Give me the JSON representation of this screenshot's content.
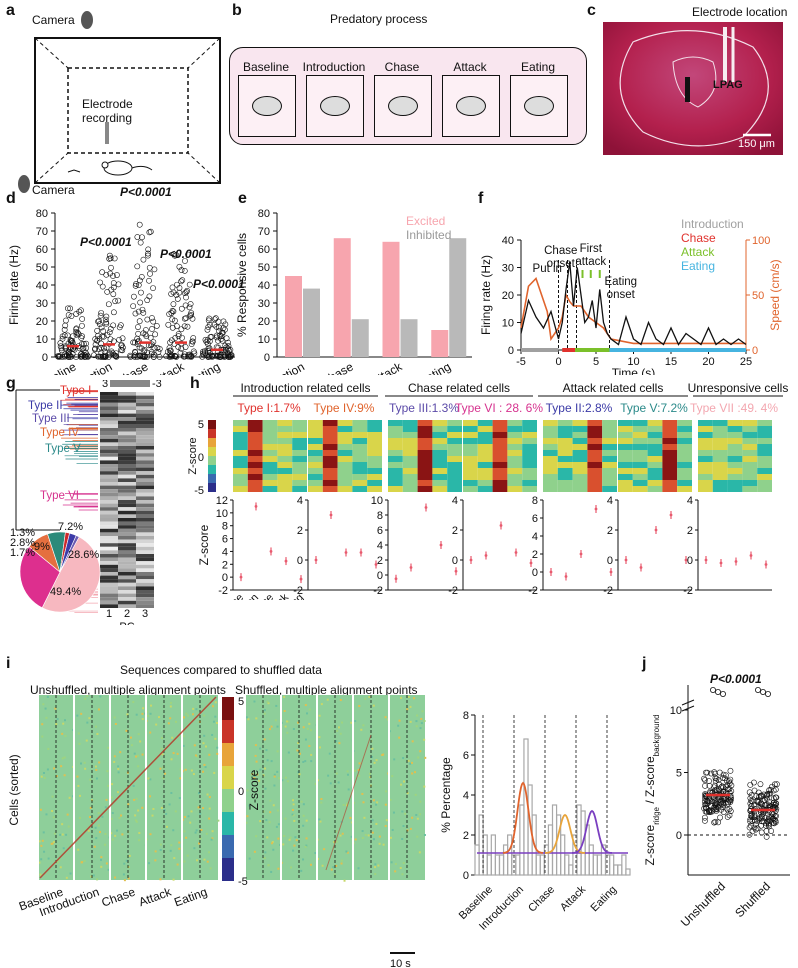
{
  "panels": {
    "a": {
      "label": "a",
      "camera_top": "Camera",
      "camera_bottom": "Camera",
      "electrode": "Electrode recording"
    },
    "b": {
      "label": "b",
      "title": "Predatory process",
      "stages": [
        "Baseline",
        "Introduction",
        "Chase",
        "Attack",
        "Eating"
      ]
    },
    "c": {
      "label": "c",
      "title": "Electrode location",
      "region": "LPAG",
      "scale": "150 μm"
    },
    "d": {
      "label": "d",
      "ylabel": "Firing rate (Hz)",
      "p1": "P<0.0001",
      "p2": "P<0.0001",
      "p3": "P<0.0001",
      "p4": "P<0.0001"
    },
    "e": {
      "label": "e",
      "ylabel": "% Responsive cells",
      "legend_excited": "Excited",
      "legend_inhibited": "Inhibited"
    },
    "f": {
      "label": "f",
      "ylabel_left": "Firing rate (Hz)",
      "ylabel_right": "Speed (cm/s)",
      "xlabel": "Time (s)",
      "ann_putin": "Put in",
      "ann_chase": "Chase",
      "ann_onset": "onset",
      "ann_first": "First",
      "ann_attack": "attack",
      "ann_eating": "Eating",
      "ann_eonset": "onset",
      "legend": [
        {
          "name": "Introduction",
          "color": "#a0a0a0"
        },
        {
          "name": "Chase",
          "color": "#e0322d"
        },
        {
          "name": "Attack",
          "color": "#7bc02a"
        },
        {
          "name": "Eating",
          "color": "#46b4e0"
        }
      ]
    },
    "g": {
      "label": "g",
      "types": [
        "Type I",
        "Type II",
        "Type III",
        "Type IV",
        "Type V",
        "Type VI",
        "Type VII"
      ],
      "pc_label": "PC",
      "pc_ticks": [
        "1",
        "2",
        "3"
      ],
      "scale_hi": "3",
      "scale_lo": "-3",
      "pie_labels": [
        "7.2%",
        "9%",
        "28.6%",
        "49.4%",
        "1.3%",
        "2.8%",
        "1.7%"
      ]
    },
    "h": {
      "label": "h",
      "groups": [
        "Introduction related cells",
        "Chase related cells",
        "Attack related cells",
        "Unresponsive cells"
      ],
      "types": [
        "Type I:1.7%",
        "Type IV:9%",
        "Type III:1.3%",
        "Type VI : 28. 6%",
        "Type II:2.8%",
        "Type V:7.2%",
        "Type VII :49. 4%"
      ],
      "type_colors": [
        "#e0322d",
        "#e0642d",
        "#5b4aa8",
        "#d6338f",
        "#3b3aa6",
        "#2b8a8a",
        "#f3a7b0"
      ],
      "colorbar_label": "Z-score",
      "colorbar_ticks": [
        "5",
        "0",
        "-5"
      ],
      "zscore_label": "Z-score",
      "xcats": [
        "Baseline",
        "Introduction",
        "Chase",
        "Attack",
        "Eating"
      ]
    },
    "i": {
      "label": "i",
      "title": "Sequences compared to shuffled data",
      "sub1": "Unshuffled, multiple alignment points",
      "sub2": "Shuffled, multiple alignment points",
      "ylabel": "Cells (sorted)",
      "colorbar_label": "Z-score",
      "cb_ticks": [
        "5",
        "0",
        "-5"
      ],
      "xcats": [
        "Baseline",
        "Introduction",
        "Chase",
        "Attack",
        "Eating"
      ],
      "scalebar": "10 s",
      "pct_label": "% Percentage",
      "pct_ticks": [
        "8",
        "6",
        "4",
        "2",
        "0"
      ]
    },
    "j": {
      "label": "j",
      "p": "P<0.0001",
      "xcats": [
        "Unshuffled",
        "Shuffled"
      ],
      "ylabel": "Z-score",
      "ylabel_sub1": "ridge",
      "ylabel_mid": " / Z-score",
      "ylabel_sub2": "background",
      "ticks": [
        "10",
        "5",
        "0"
      ]
    }
  },
  "chart_data": [
    {
      "type": "scatter",
      "panel": "d",
      "categories": [
        "Baseline",
        "Introduction",
        "Chase",
        "Attack",
        "Eating"
      ],
      "means": [
        6,
        7,
        8,
        8,
        4
      ],
      "ylim": [
        0,
        80
      ],
      "yticks": [
        0,
        10,
        20,
        30,
        40,
        50,
        60,
        70,
        80
      ],
      "ylabel": "Firing rate (Hz)"
    },
    {
      "type": "bar",
      "panel": "e",
      "categories": [
        "Introduction",
        "Chase",
        "Attack",
        "Eating"
      ],
      "series": [
        {
          "name": "Excited",
          "values": [
            45,
            66,
            64,
            15
          ],
          "color": "#f7a5ae"
        },
        {
          "name": "Inhibited",
          "values": [
            38,
            21,
            21,
            66
          ],
          "color": "#b9b9b9"
        }
      ],
      "ylim": [
        0,
        80
      ],
      "yticks": [
        0,
        10,
        20,
        30,
        40,
        50,
        60,
        70,
        80
      ],
      "ylabel": "% Responsive cells"
    },
    {
      "type": "line",
      "panel": "f",
      "x": [
        -5,
        -4,
        -3,
        -2,
        -1,
        0,
        0.5,
        1,
        1.5,
        2,
        2.5,
        3,
        3.5,
        4,
        4.5,
        5,
        5.5,
        6,
        6.5,
        7,
        8,
        9,
        10,
        11,
        12,
        13,
        14,
        15,
        16,
        17,
        18,
        19,
        20,
        21,
        22,
        23,
        24,
        25
      ],
      "firing": [
        6,
        18,
        12,
        8,
        14,
        4,
        10,
        22,
        32,
        16,
        30,
        20,
        10,
        12,
        18,
        8,
        22,
        10,
        6,
        4,
        2,
        12,
        4,
        2,
        10,
        4,
        2,
        8,
        2,
        6,
        4,
        2,
        8,
        2,
        4,
        2,
        4,
        2
      ],
      "speed_x": [
        -5,
        -4,
        -3,
        -2.5,
        -1.5,
        -1,
        0,
        0.5,
        1,
        1.5,
        2,
        3,
        4,
        5,
        6,
        7,
        10,
        15,
        20,
        25
      ],
      "speed": [
        20,
        58,
        65,
        55,
        35,
        10,
        20,
        30,
        50,
        44,
        40,
        40,
        30,
        25,
        20,
        10,
        6,
        6,
        6,
        6
      ],
      "xlim": [
        -5,
        25
      ],
      "xticks": [
        -5,
        0,
        5,
        10,
        15,
        20,
        25
      ],
      "ylim_left": [
        0,
        40
      ],
      "yticks_left": [
        0,
        10,
        20,
        30,
        40
      ],
      "ylim_right": [
        0,
        100
      ],
      "yticks_right": [
        0,
        50,
        100
      ],
      "ylabel_left": "Firing rate (Hz)",
      "ylabel_right": "Speed (cm/s)",
      "xlabel": "Time (s)"
    },
    {
      "type": "pie",
      "panel": "g",
      "labels": [
        "49.4%",
        "28.6%",
        "9%",
        "7.2%",
        "1.7%",
        "2.8%",
        "1.3%"
      ],
      "values": [
        49.4,
        28.6,
        9,
        7.2,
        1.7,
        2.8,
        1.3
      ],
      "colors": [
        "#f7b8c0",
        "#dd2f8e",
        "#e56f3f",
        "#2b8a7a",
        "#cc2a2a",
        "#3c3ba8",
        "#6a58b0"
      ]
    },
    {
      "type": "scatter",
      "panel": "h",
      "xcats": [
        "Baseline",
        "Introduction",
        "Chase",
        "Attack",
        "Eating"
      ],
      "series": [
        {
          "name": "Type I",
          "values": [
            0,
            11,
            4,
            2.5,
            -0.3
          ],
          "ylim": [
            -2,
            12
          ]
        },
        {
          "name": "Type IV",
          "values": [
            0,
            3,
            0.5,
            0.5,
            -0.3
          ],
          "ylim": [
            -2,
            4
          ]
        },
        {
          "name": "Type III",
          "values": [
            -0.5,
            1,
            9,
            4,
            0.5
          ],
          "ylim": [
            -2,
            10
          ]
        },
        {
          "name": "Type VI",
          "values": [
            0,
            0.3,
            2.3,
            0.5,
            -0.2
          ],
          "ylim": [
            -2,
            4
          ]
        },
        {
          "name": "Type II",
          "values": [
            0,
            -0.5,
            2,
            7,
            0
          ],
          "ylim": [
            -2,
            8
          ]
        },
        {
          "name": "Type V",
          "values": [
            0,
            -0.5,
            2,
            3,
            0
          ],
          "ylim": [
            -2,
            4
          ]
        },
        {
          "name": "Type VII",
          "values": [
            0,
            -0.2,
            -0.1,
            0.3,
            -0.3
          ],
          "ylim": [
            -2,
            4
          ]
        }
      ]
    },
    {
      "type": "bar",
      "panel": "i",
      "ylim": [
        0,
        8
      ],
      "ylabel": "% Percentage",
      "values": [
        1.5,
        3,
        2,
        1,
        2,
        1,
        1,
        1.5,
        2,
        1,
        1,
        3.5,
        6.8,
        4.5,
        3,
        1,
        1,
        1.5,
        2.5,
        3.5,
        3,
        2,
        1,
        0.5,
        2,
        3.5,
        3.2,
        2.5,
        1.5,
        1,
        1,
        1.5,
        1,
        1,
        0.5,
        0.5,
        1,
        0.3
      ]
    },
    {
      "type": "scatter",
      "panel": "j",
      "categories": [
        "Unshuffled",
        "Shuffled"
      ],
      "means": [
        3.2,
        2.0
      ],
      "ylabel": "Z-score ridge / Z-score background"
    }
  ]
}
